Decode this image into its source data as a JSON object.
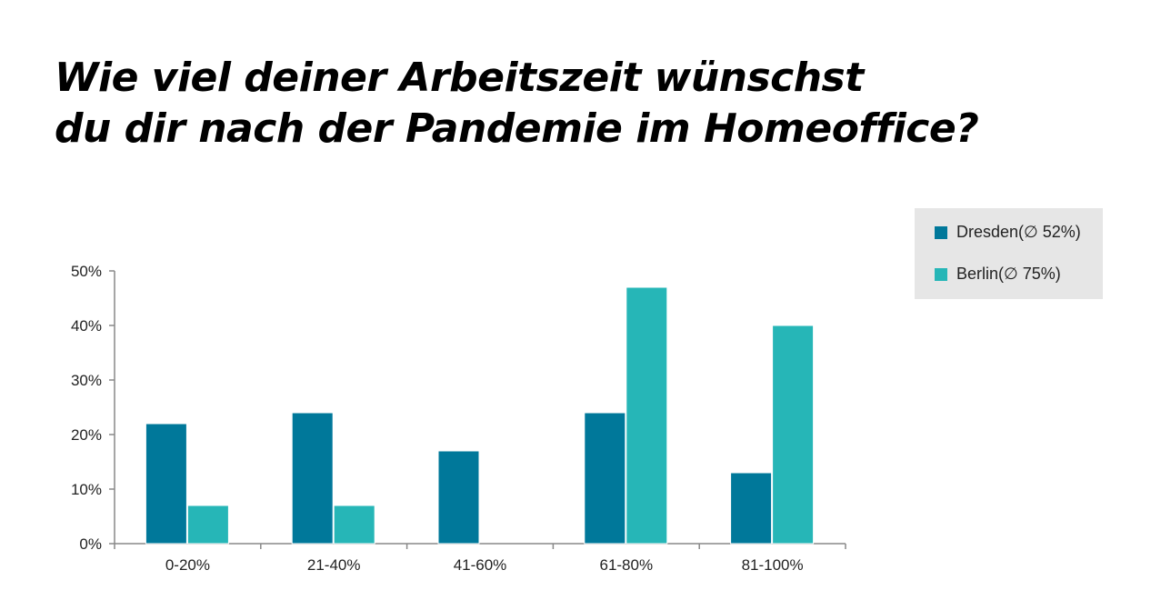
{
  "title_lines": [
    "Wie viel deiner Arbeitszeit wünschst",
    "du dir nach der Pandemie im Homeoffice?"
  ],
  "chart_data": {
    "type": "bar",
    "categories": [
      "0-20%",
      "21-40%",
      "41-60%",
      "61-80%",
      "81-100%"
    ],
    "series": [
      {
        "name": "Dresden(∅ 52%)",
        "values": [
          22,
          24,
          17,
          24,
          13
        ],
        "color": "#00789a"
      },
      {
        "name": "Berlin(∅ 75%)",
        "values": [
          7,
          7,
          0,
          47,
          40
        ],
        "color": "#26b6b7"
      }
    ],
    "ylim": [
      0,
      50
    ],
    "yticks": [
      0,
      10,
      20,
      30,
      40,
      50
    ],
    "ytick_labels": [
      "0%",
      "10%",
      "20%",
      "30%",
      "40%",
      "50%"
    ],
    "grid": false,
    "legend_position": "top-right"
  }
}
